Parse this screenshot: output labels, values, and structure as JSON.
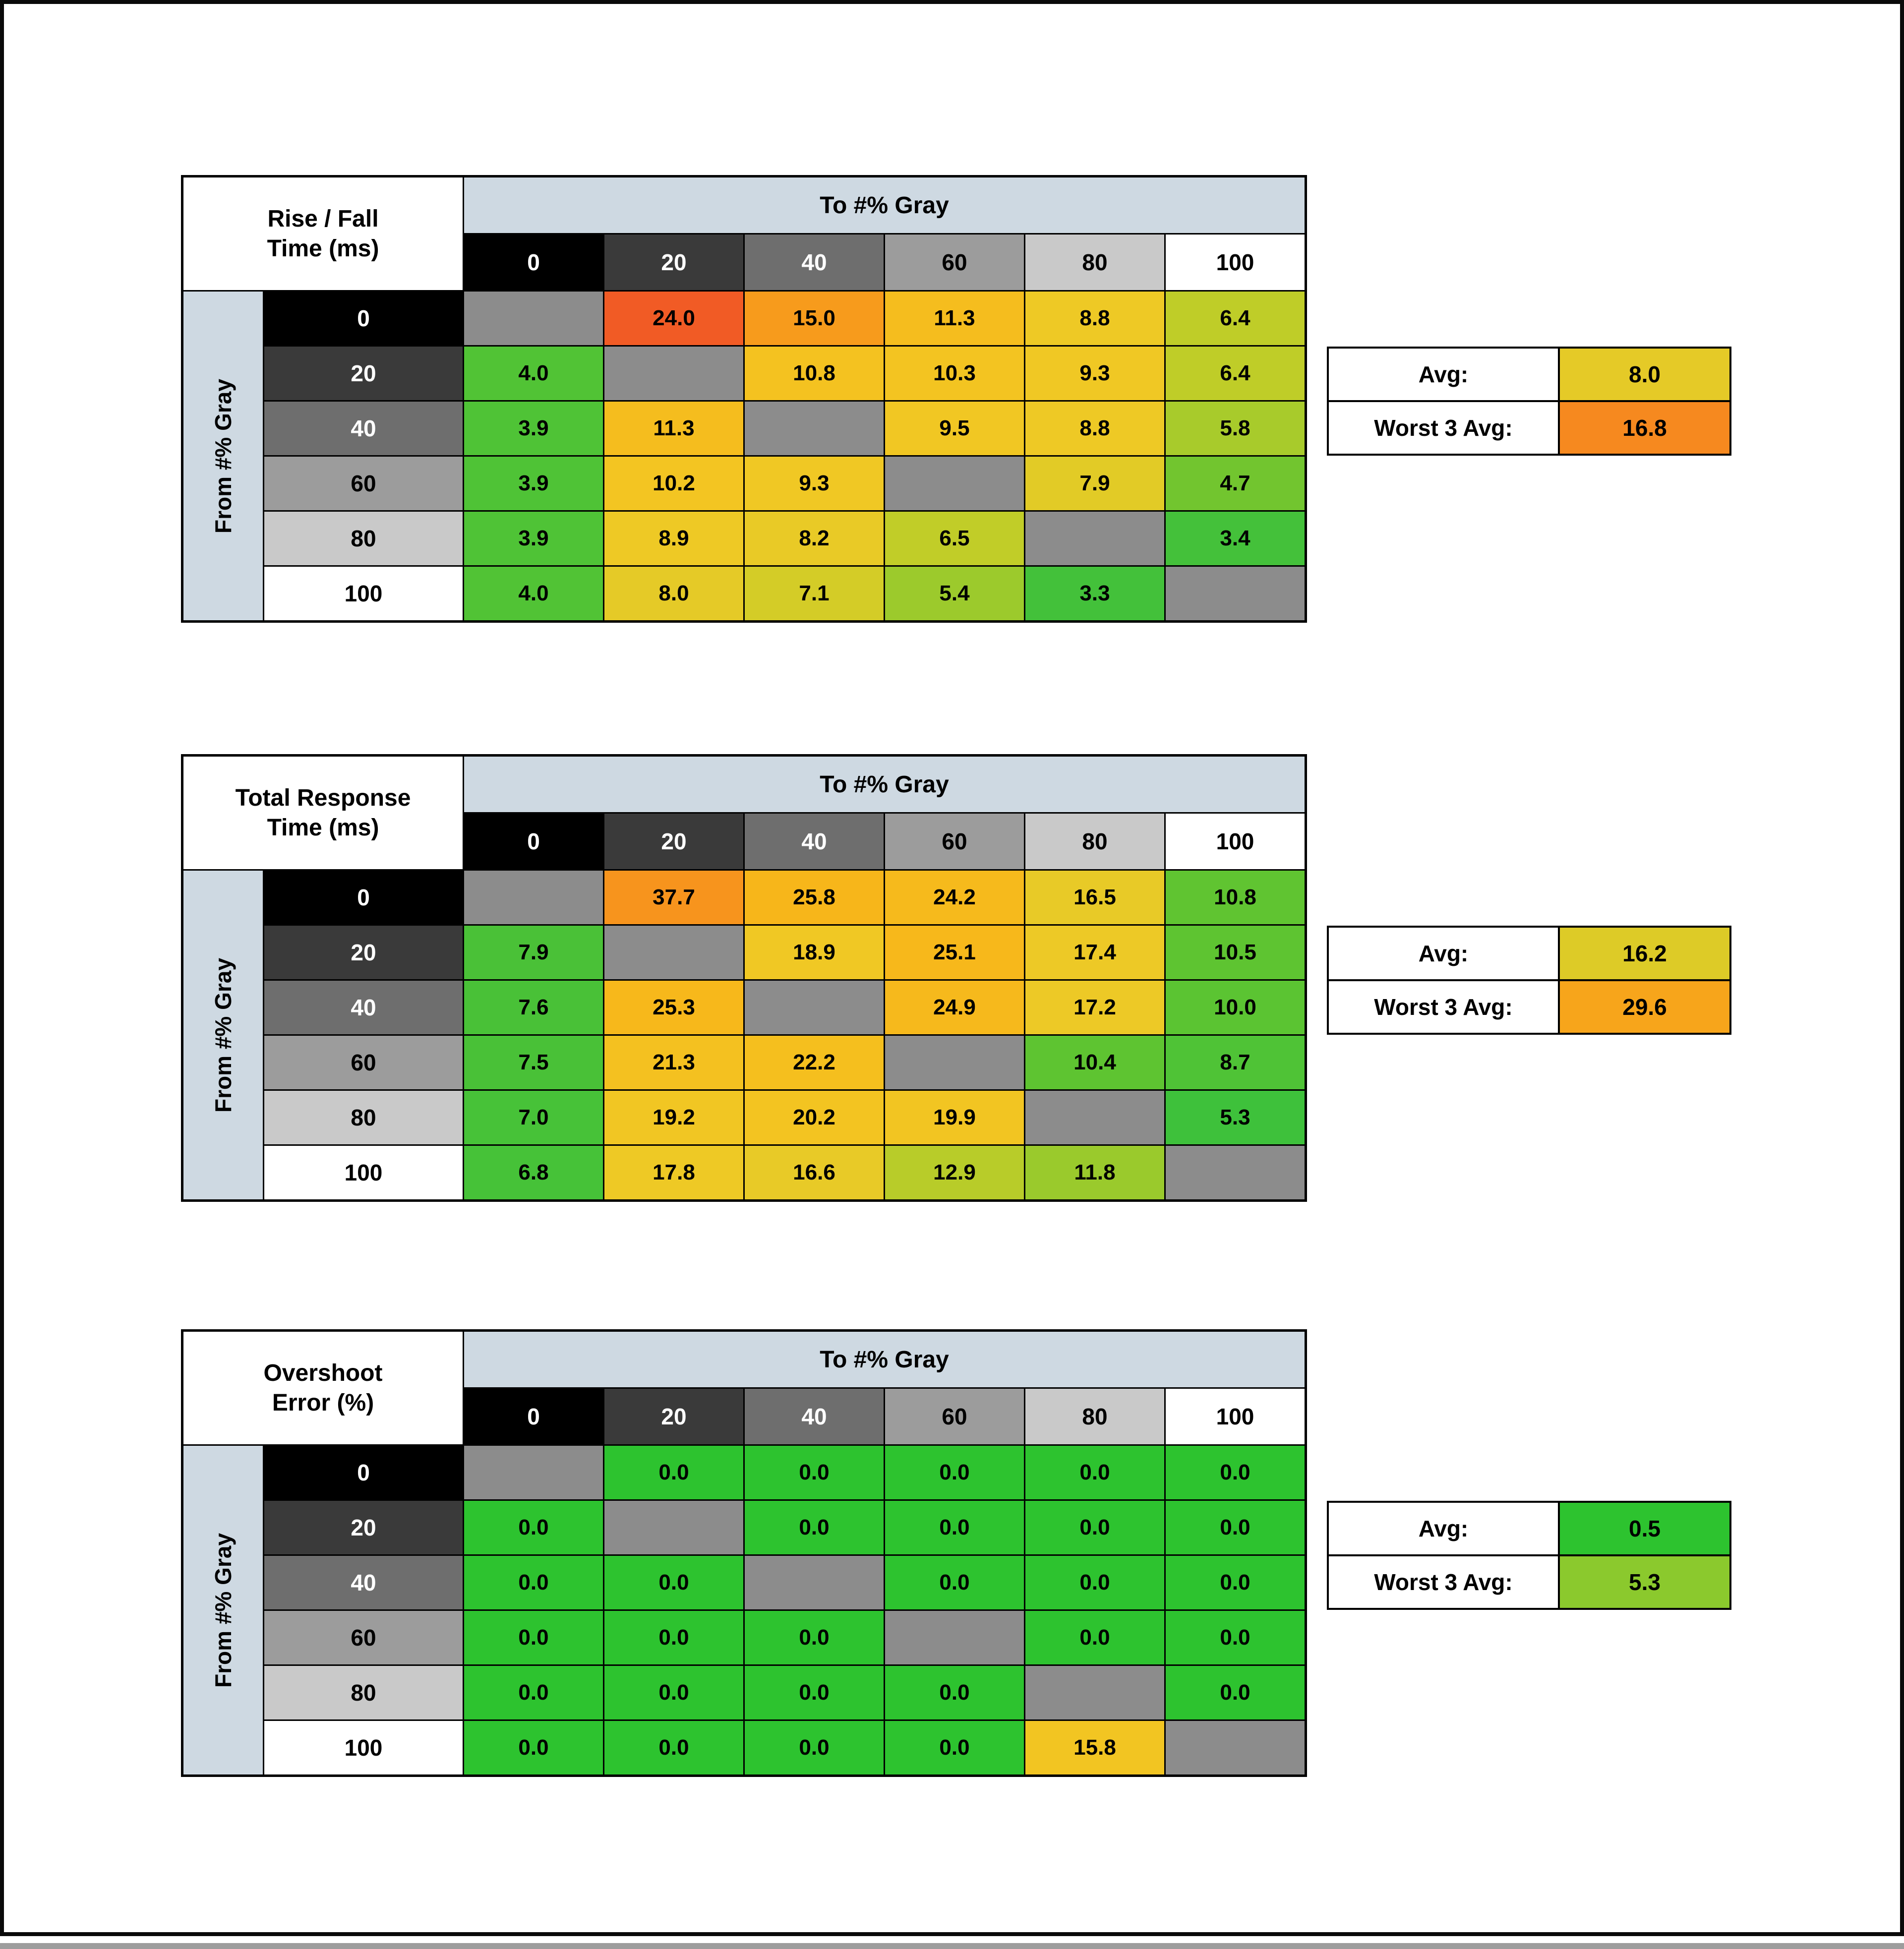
{
  "page": {
    "background": "#ffffff",
    "frame_border_color": "#0a0a0a",
    "bottom_strip_color": "#9d9d9d"
  },
  "shared": {
    "to_label": "To #% Gray",
    "from_label": "From #% Gray",
    "avg_label": "Avg:",
    "worst_label": "Worst 3 Avg:",
    "gray_levels": [
      "0",
      "20",
      "40",
      "60",
      "80",
      "100"
    ],
    "gray_header_bg": [
      "#000000",
      "#3a3a3a",
      "#6e6e6e",
      "#9c9c9c",
      "#c9c9c9",
      "#ffffff"
    ],
    "gray_header_fg": [
      "#ffffff",
      "#ffffff",
      "#ffffff",
      "#000000",
      "#000000",
      "#000000"
    ],
    "diagonal_color": "#8c8c8c",
    "header_band_bg": "#ced9e2"
  },
  "chart_data": [
    {
      "type": "heatmap",
      "title_line1": "Rise / Fall",
      "title_line2": "Time (ms)",
      "xlabel": "To #% Gray",
      "ylabel": "From #% Gray",
      "columns": [
        "0",
        "20",
        "40",
        "60",
        "80",
        "100"
      ],
      "rows": [
        "0",
        "20",
        "40",
        "60",
        "80",
        "100"
      ],
      "values": [
        [
          null,
          "24.0",
          "15.0",
          "11.3",
          "8.8",
          "6.4"
        ],
        [
          "4.0",
          null,
          "10.8",
          "10.3",
          "9.3",
          "6.4"
        ],
        [
          "3.9",
          "11.3",
          null,
          "9.5",
          "8.8",
          "5.8"
        ],
        [
          "3.9",
          "10.2",
          "9.3",
          null,
          "7.9",
          "4.7"
        ],
        [
          "3.9",
          "8.9",
          "8.2",
          "6.5",
          null,
          "3.4"
        ],
        [
          "4.0",
          "8.0",
          "7.1",
          "5.4",
          "3.3",
          null
        ]
      ],
      "colors": [
        [
          null,
          "#f15b25",
          "#f79b1c",
          "#f5bd1e",
          "#eec925",
          "#bfcd28"
        ],
        [
          "#51c335",
          null,
          "#f4c220",
          "#f3c421",
          "#f0c824",
          "#bfcd28"
        ],
        [
          "#4fc336",
          "#f5bd1e",
          null,
          "#f1c723",
          "#eec925",
          "#a8cb2b"
        ],
        [
          "#4fc336",
          "#f3c522",
          "#f0c824",
          null,
          "#e2cb26",
          "#72c52f"
        ],
        [
          "#4fc336",
          "#eec925",
          "#e9ca26",
          "#c1cd28",
          null,
          "#44c13a"
        ],
        [
          "#51c335",
          "#e5ca27",
          "#d4cc27",
          "#9cca2c",
          "#43c13a",
          null
        ]
      ],
      "avg": {
        "value": "8.0",
        "color": "#e5ca27"
      },
      "worst3": {
        "value": "16.8",
        "color": "#f6891f"
      }
    },
    {
      "type": "heatmap",
      "title_line1": "Total Response",
      "title_line2": "Time (ms)",
      "xlabel": "To #% Gray",
      "ylabel": "From #% Gray",
      "columns": [
        "0",
        "20",
        "40",
        "60",
        "80",
        "100"
      ],
      "rows": [
        "0",
        "20",
        "40",
        "60",
        "80",
        "100"
      ],
      "values": [
        [
          null,
          "37.7",
          "25.8",
          "24.2",
          "16.5",
          "10.8"
        ],
        [
          "7.9",
          null,
          "18.9",
          "25.1",
          "17.4",
          "10.5"
        ],
        [
          "7.6",
          "25.3",
          null,
          "24.9",
          "17.2",
          "10.0"
        ],
        [
          "7.5",
          "21.3",
          "22.2",
          null,
          "10.4",
          "8.7"
        ],
        [
          "7.0",
          "19.2",
          "20.2",
          "19.9",
          null,
          "5.3"
        ],
        [
          "6.8",
          "17.8",
          "16.6",
          "12.9",
          "11.8",
          null
        ]
      ],
      "colors": [
        [
          null,
          "#f7941d",
          "#f7b61a",
          "#f6ba1c",
          "#e8ca27",
          "#60c431"
        ],
        [
          "#4ac137",
          null,
          "#f0c824",
          "#f7b81b",
          "#edc926",
          "#5ec431"
        ],
        [
          "#49c137",
          "#f7b81b",
          null,
          "#f6b91c",
          "#edc926",
          "#5bc432"
        ],
        [
          "#49c137",
          "#f4c120",
          "#f5bf1e",
          null,
          "#5ec431",
          "#4fc336"
        ],
        [
          "#47c238",
          "#f1c623",
          "#f3c421",
          "#f2c522",
          null,
          "#3ec13b"
        ],
        [
          "#46c238",
          "#eec925",
          "#e8ca27",
          "#b8cc29",
          "#9aca2c",
          null
        ]
      ],
      "avg": {
        "value": "16.2",
        "color": "#ddcb27"
      },
      "worst3": {
        "value": "29.6",
        "color": "#f7a51b"
      }
    },
    {
      "type": "heatmap",
      "title_line1": "Overshoot",
      "title_line2": "Error (%)",
      "xlabel": "To #% Gray",
      "ylabel": "From #% Gray",
      "columns": [
        "0",
        "20",
        "40",
        "60",
        "80",
        "100"
      ],
      "rows": [
        "0",
        "20",
        "40",
        "60",
        "80",
        "100"
      ],
      "values": [
        [
          null,
          "0.0",
          "0.0",
          "0.0",
          "0.0",
          "0.0"
        ],
        [
          "0.0",
          null,
          "0.0",
          "0.0",
          "0.0",
          "0.0"
        ],
        [
          "0.0",
          "0.0",
          null,
          "0.0",
          "0.0",
          "0.0"
        ],
        [
          "0.0",
          "0.0",
          "0.0",
          null,
          "0.0",
          "0.0"
        ],
        [
          "0.0",
          "0.0",
          "0.0",
          "0.0",
          null,
          "0.0"
        ],
        [
          "0.0",
          "0.0",
          "0.0",
          "0.0",
          "15.8",
          null
        ]
      ],
      "colors": [
        [
          null,
          "#2dc32f",
          "#2dc32f",
          "#2dc32f",
          "#2dc32f",
          "#2dc32f"
        ],
        [
          "#2dc32f",
          null,
          "#2dc32f",
          "#2dc32f",
          "#2dc32f",
          "#2dc32f"
        ],
        [
          "#2dc32f",
          "#2dc32f",
          null,
          "#2dc32f",
          "#2dc32f",
          "#2dc32f"
        ],
        [
          "#2dc32f",
          "#2dc32f",
          "#2dc32f",
          null,
          "#2dc32f",
          "#2dc32f"
        ],
        [
          "#2dc32f",
          "#2dc32f",
          "#2dc32f",
          "#2dc32f",
          null,
          "#2dc32f"
        ],
        [
          "#2dc32f",
          "#2dc32f",
          "#2dc32f",
          "#2dc32f",
          "#f2c522",
          null
        ]
      ],
      "avg": {
        "value": "0.5",
        "color": "#2dc32f"
      },
      "worst3": {
        "value": "5.3",
        "color": "#8bc92d"
      }
    }
  ]
}
